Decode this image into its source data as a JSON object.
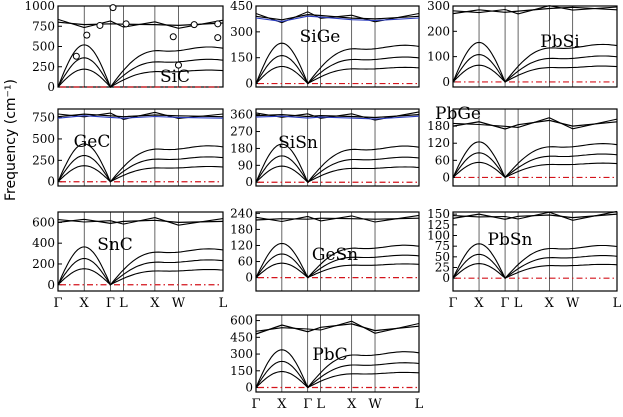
{
  "figure": {
    "ylabel": "Frequency (cm⁻¹)"
  },
  "colors": {
    "branch": "#000000",
    "imaginary_line": "#d4141c",
    "blue_branch": "#2a3bbf",
    "marker_fill": "#ffffff"
  },
  "chart_data": [
    {
      "type": "line",
      "title": "SiC",
      "ylim": [
        0,
        1000
      ],
      "ticks": [
        0,
        250,
        500,
        750,
        1000
      ],
      "xticks": [],
      "imaginary_dashed_line": true,
      "blue_branch": false,
      "series": [
        {
          "name": "",
          "x": [
            0,
            0.5,
            1,
            1.25,
            1.85,
            2.3,
            3.15
          ],
          "values": [
            0,
            0,
            0,
            0,
            0,
            0,
            0
          ]
        },
        {
          "name": "",
          "x": [
            0,
            0.5,
            1,
            1.25,
            1.85,
            2.3,
            3.15
          ],
          "values": [
            800,
            770,
            780,
            775,
            770,
            760,
            790
          ]
        }
      ],
      "markers": [
        {
          "x": 0.35,
          "y": 380
        },
        {
          "x": 0.55,
          "y": 640
        },
        {
          "x": 0.8,
          "y": 760
        },
        {
          "x": 1.05,
          "y": 980
        },
        {
          "x": 1.3,
          "y": 780
        },
        {
          "x": 2.2,
          "y": 620
        },
        {
          "x": 2.3,
          "y": 270
        },
        {
          "x": 3.05,
          "y": 610
        },
        {
          "x": 3.05,
          "y": 780
        },
        {
          "x": 2.6,
          "y": 770
        }
      ]
    },
    {
      "type": "line",
      "title": "SiGe",
      "ylim": [
        -20,
        450
      ],
      "ticks": [
        0,
        150,
        300,
        450
      ],
      "xticks": [],
      "imaginary_dashed_line": true,
      "blue_branch": true,
      "series": [
        {
          "name": "",
          "x": [
            0,
            0.5,
            1,
            1.25,
            1.85,
            2.3,
            3.15
          ],
          "values": [
            390,
            370,
            400,
            395,
            380,
            375,
            390
          ]
        }
      ]
    },
    {
      "type": "line",
      "title": "PbSi",
      "ylim": [
        -20,
        300
      ],
      "ticks": [
        0,
        100,
        200,
        300
      ],
      "xticks": [],
      "imaginary_dashed_line": true,
      "blue_branch": false,
      "series": [
        {
          "name": "",
          "x": [
            0,
            0.5,
            1,
            1.25,
            1.85,
            2.3,
            3.15
          ],
          "values": [
            270,
            285,
            275,
            280,
            290,
            295,
            285
          ]
        }
      ]
    },
    {
      "type": "line",
      "title": "GeC",
      "ylim": [
        -50,
        850
      ],
      "ticks": [
        0,
        250,
        500,
        750
      ],
      "xticks": [],
      "imaginary_dashed_line": true,
      "blue_branch": true,
      "series": [
        {
          "name": "",
          "x": [
            0,
            0.5,
            1,
            1.25,
            1.85,
            2.3,
            3.15
          ],
          "values": [
            760,
            790,
            770,
            760,
            780,
            770,
            760
          ]
        }
      ]
    },
    {
      "type": "line",
      "title": "SiSn",
      "ylim": [
        -20,
        390
      ],
      "ticks": [
        0,
        90,
        180,
        270,
        360
      ],
      "xticks": [],
      "imaginary_dashed_line": true,
      "blue_branch": true,
      "series": [
        {
          "name": "",
          "x": [
            0,
            0.5,
            1,
            1.25,
            1.85,
            2.3,
            3.15
          ],
          "values": [
            355,
            360,
            350,
            355,
            350,
            345,
            360
          ]
        }
      ]
    },
    {
      "type": "line",
      "title": "PbGe",
      "ylim": [
        -30,
        240
      ],
      "ticks": [
        0,
        60,
        120,
        180
      ],
      "xticks": [],
      "imaginary_dashed_line": true,
      "blue_branch": false,
      "series": [
        {
          "name": "",
          "x": [
            0,
            0.5,
            1,
            1.25,
            1.85,
            2.3,
            3.15
          ],
          "values": [
            180,
            195,
            170,
            185,
            200,
            180,
            195
          ]
        }
      ]
    },
    {
      "type": "line",
      "title": "SnC",
      "ylim": [
        -60,
        700
      ],
      "ticks": [
        0,
        200,
        400,
        600
      ],
      "xticks": [
        "Γ",
        "X",
        "Γ",
        "L",
        "X",
        "W",
        "L"
      ],
      "imaginary_dashed_line": true,
      "blue_branch": false,
      "series": [
        {
          "name": "",
          "x": [
            0,
            0.5,
            1,
            1.25,
            1.85,
            2.3,
            3.15
          ],
          "values": [
            600,
            630,
            590,
            610,
            620,
            600,
            610
          ]
        }
      ]
    },
    {
      "type": "line",
      "title": "GeSn",
      "ylim": [
        -50,
        245
      ],
      "ticks": [
        0,
        60,
        120,
        180,
        240
      ],
      "xticks": [],
      "imaginary_dashed_line": true,
      "blue_branch": false,
      "series": [
        {
          "name": "",
          "x": [
            0,
            0.5,
            1,
            1.25,
            1.85,
            2.3,
            3.15
          ],
          "values": [
            215,
            220,
            218,
            222,
            220,
            218,
            222
          ]
        }
      ]
    },
    {
      "type": "line",
      "title": "PbSn",
      "ylim": [
        -30,
        155
      ],
      "ticks": [
        0,
        25,
        50,
        75,
        100,
        125,
        150
      ],
      "xticks": [
        "Γ",
        "X",
        "Γ",
        "L",
        "X",
        "W",
        "L"
      ],
      "imaginary_dashed_line": true,
      "blue_branch": false,
      "series": [
        {
          "name": "",
          "x": [
            0,
            0.5,
            1,
            1.25,
            1.85,
            2.3,
            3.15
          ],
          "values": [
            140,
            150,
            138,
            145,
            148,
            142,
            150
          ]
        }
      ]
    },
    {
      "type": "line",
      "title": "PbC",
      "ylim": [
        -40,
        650
      ],
      "ticks": [
        0,
        150,
        300,
        450,
        600
      ],
      "xticks": [
        "Γ",
        "X",
        "Γ",
        "L",
        "X",
        "W",
        "L"
      ],
      "imaginary_dashed_line": true,
      "blue_branch": false,
      "series": [
        {
          "name": "",
          "x": [
            0,
            0.5,
            1,
            1.25,
            1.85,
            2.3,
            3.15
          ],
          "values": [
            480,
            560,
            500,
            540,
            570,
            510,
            550
          ]
        }
      ]
    }
  ]
}
